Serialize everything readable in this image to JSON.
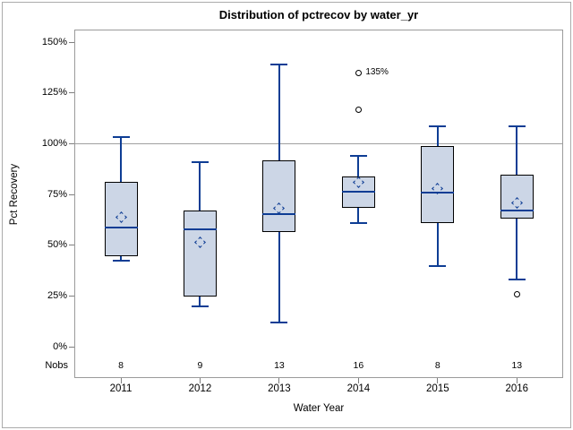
{
  "title": "Distribution of pctrecov by water_yr",
  "y_axis": {
    "label": "Pct Recovery"
  },
  "x_axis": {
    "label": "Water Year"
  },
  "nobs_row_label": "Nobs",
  "colors": {
    "box_fill": "#ccd6e6",
    "box_edge": "#000000",
    "line": "#0e3d94",
    "refline": "#a0a0a0",
    "frame": "#9b9b9b",
    "tick": "#7f7f7f",
    "outlier": "#000000",
    "text": "#000000"
  },
  "chart_data": {
    "type": "boxplot",
    "title": "Distribution of pctrecov by water_yr",
    "xlabel": "Water Year",
    "ylabel": "Pct Recovery",
    "ylim": [
      0,
      150
    ],
    "yticks": [
      0,
      25,
      50,
      75,
      100,
      125,
      150
    ],
    "ytick_suffix": "%",
    "refline": 100,
    "grid": "refline-only",
    "legend": null,
    "categories": [
      "2011",
      "2012",
      "2013",
      "2014",
      "2015",
      "2016"
    ],
    "nobs": [
      8,
      9,
      13,
      16,
      8,
      13
    ],
    "series": [
      {
        "category": "2011",
        "n": 8,
        "whisker_low": 42.5,
        "q1": 44.5,
        "median": 59,
        "mean": 64,
        "q3": 81.5,
        "whisker_high": 103.5,
        "outliers": []
      },
      {
        "category": "2012",
        "n": 9,
        "whisker_low": 20,
        "q1": 25,
        "median": 58,
        "mean": 51.5,
        "q3": 67,
        "whisker_high": 91,
        "outliers": []
      },
      {
        "category": "2013",
        "n": 13,
        "whisker_low": 12,
        "q1": 56.5,
        "median": 65.5,
        "mean": 68.5,
        "q3": 92,
        "whisker_high": 139,
        "outliers": []
      },
      {
        "category": "2014",
        "n": 16,
        "whisker_low": 61,
        "q1": 68.5,
        "median": 76.5,
        "mean": 81,
        "q3": 84,
        "whisker_high": 94,
        "outliers": [
          117,
          135
        ],
        "outlier_label": {
          "value": 135,
          "text": "135%"
        }
      },
      {
        "category": "2015",
        "n": 8,
        "whisker_low": 40,
        "q1": 61,
        "median": 76,
        "mean": 78,
        "q3": 99,
        "whisker_high": 108.5,
        "outliers": []
      },
      {
        "category": "2016",
        "n": 13,
        "whisker_low": 33,
        "q1": 63,
        "median": 67,
        "mean": 71,
        "q3": 85,
        "whisker_high": 108.5,
        "outliers": [
          26
        ]
      }
    ]
  }
}
